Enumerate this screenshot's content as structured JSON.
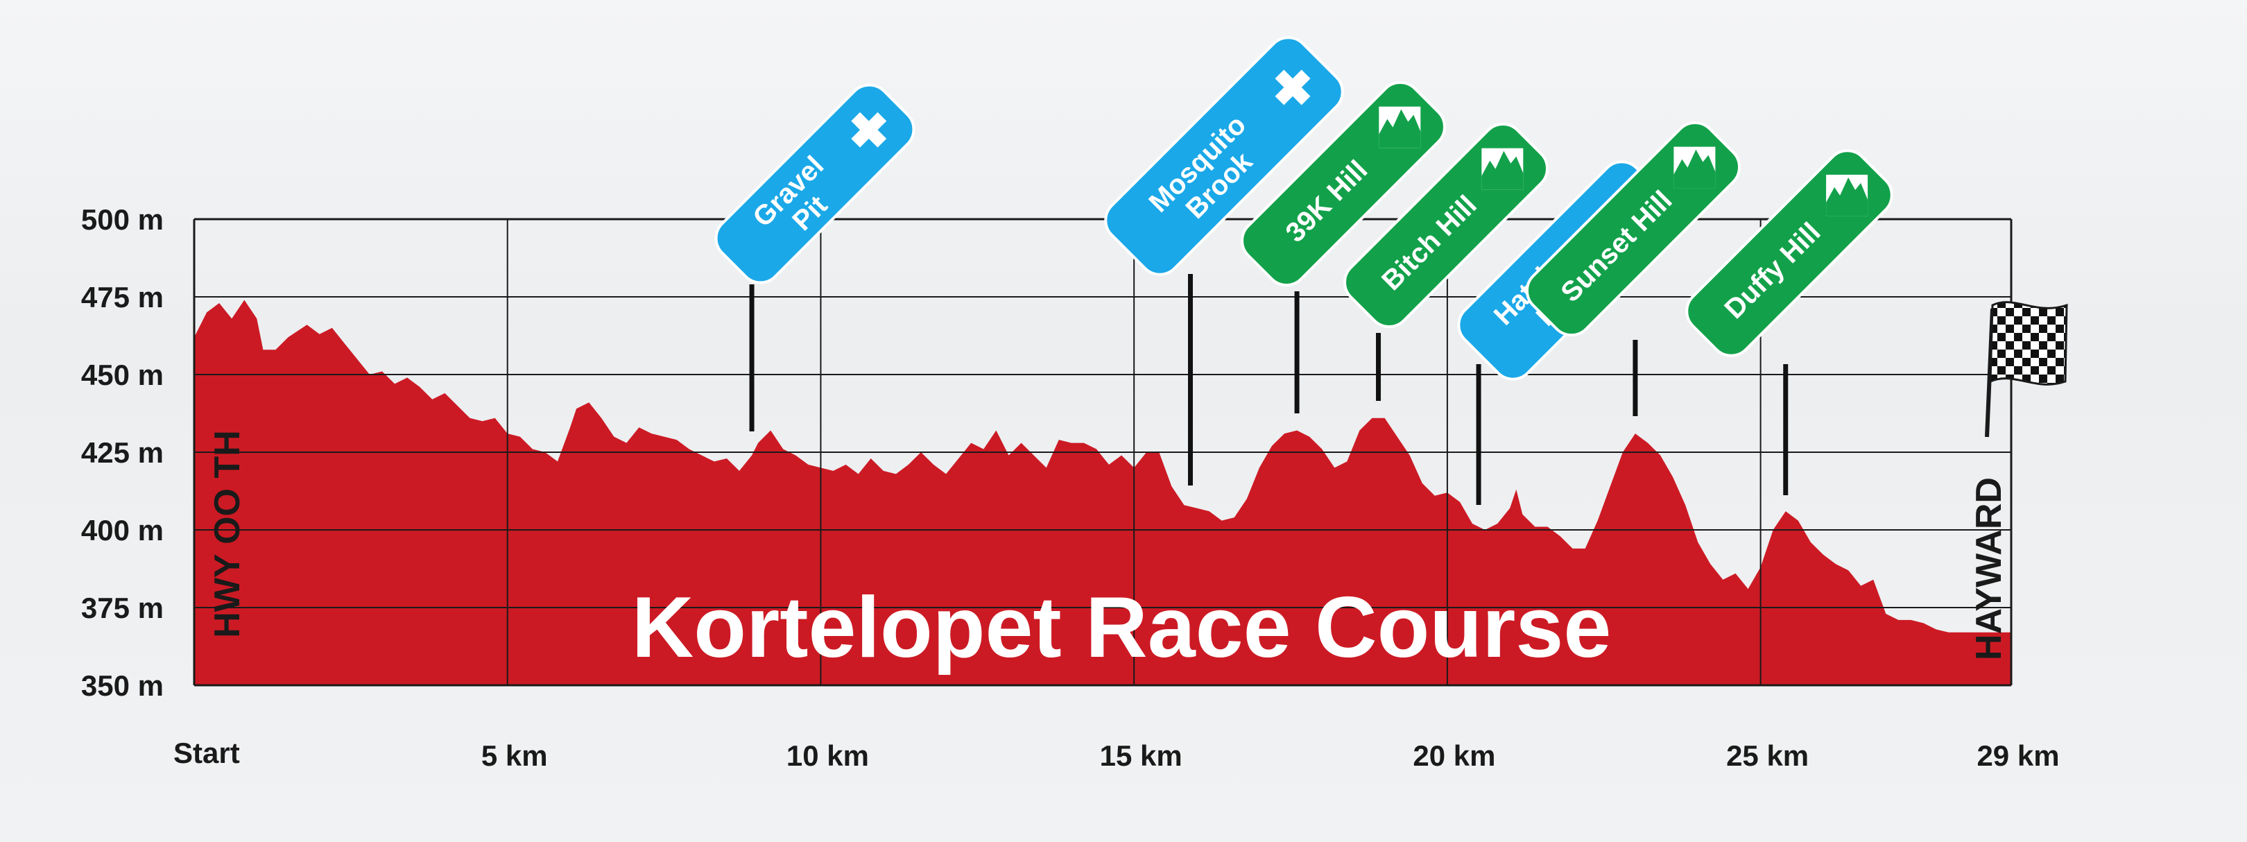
{
  "chart_data": {
    "type": "area",
    "title": "Kortelopet Race Course",
    "x_ticks": [
      {
        "km": 0,
        "label": "Start"
      },
      {
        "km": 5,
        "label": "5 km"
      },
      {
        "km": 10,
        "label": "10 km"
      },
      {
        "km": 15,
        "label": "15 km"
      },
      {
        "km": 20,
        "label": "20 km"
      },
      {
        "km": 25,
        "label": "25 km"
      },
      {
        "km": 29,
        "label": "29 km"
      }
    ],
    "y_ticks": [
      {
        "m": 350,
        "label": "350 m"
      },
      {
        "m": 375,
        "label": "375 m"
      },
      {
        "m": 400,
        "label": "400 m"
      },
      {
        "m": 425,
        "label": "425 m"
      },
      {
        "m": 450,
        "label": "450 m"
      },
      {
        "m": 475,
        "label": "475 m"
      },
      {
        "m": 500,
        "label": "500 m"
      }
    ],
    "xlim": [
      0,
      29
    ],
    "ylim": [
      350,
      500
    ],
    "grid": true,
    "start_label": "HWY OO TH",
    "finish_label": "HAYWARD",
    "fill_color": "#cc1a24",
    "elevation": [
      [
        0.0,
        462
      ],
      [
        0.2,
        470
      ],
      [
        0.4,
        473
      ],
      [
        0.6,
        468
      ],
      [
        0.8,
        474
      ],
      [
        1.0,
        468
      ],
      [
        1.1,
        458
      ],
      [
        1.3,
        458
      ],
      [
        1.5,
        462
      ],
      [
        1.8,
        466
      ],
      [
        2.0,
        463
      ],
      [
        2.2,
        465
      ],
      [
        2.4,
        460
      ],
      [
        2.6,
        455
      ],
      [
        2.8,
        450
      ],
      [
        3.0,
        451
      ],
      [
        3.2,
        447
      ],
      [
        3.4,
        449
      ],
      [
        3.6,
        446
      ],
      [
        3.8,
        442
      ],
      [
        4.0,
        444
      ],
      [
        4.2,
        440
      ],
      [
        4.4,
        436
      ],
      [
        4.6,
        435
      ],
      [
        4.8,
        436
      ],
      [
        5.0,
        431
      ],
      [
        5.2,
        430
      ],
      [
        5.4,
        426
      ],
      [
        5.6,
        425
      ],
      [
        5.8,
        422
      ],
      [
        6.0,
        433
      ],
      [
        6.1,
        439
      ],
      [
        6.3,
        441
      ],
      [
        6.5,
        436
      ],
      [
        6.7,
        430
      ],
      [
        6.9,
        428
      ],
      [
        7.1,
        433
      ],
      [
        7.3,
        431
      ],
      [
        7.5,
        430
      ],
      [
        7.7,
        429
      ],
      [
        7.9,
        426
      ],
      [
        8.1,
        424
      ],
      [
        8.3,
        422
      ],
      [
        8.5,
        423
      ],
      [
        8.7,
        419
      ],
      [
        8.9,
        424
      ],
      [
        9.0,
        428
      ],
      [
        9.2,
        432
      ],
      [
        9.4,
        426
      ],
      [
        9.6,
        424
      ],
      [
        9.8,
        421
      ],
      [
        10.0,
        420
      ],
      [
        10.2,
        419
      ],
      [
        10.4,
        421
      ],
      [
        10.6,
        418
      ],
      [
        10.8,
        423
      ],
      [
        11.0,
        419
      ],
      [
        11.2,
        418
      ],
      [
        11.4,
        421
      ],
      [
        11.6,
        425
      ],
      [
        11.8,
        421
      ],
      [
        12.0,
        418
      ],
      [
        12.2,
        423
      ],
      [
        12.4,
        428
      ],
      [
        12.6,
        426
      ],
      [
        12.8,
        432
      ],
      [
        13.0,
        424
      ],
      [
        13.2,
        428
      ],
      [
        13.4,
        424
      ],
      [
        13.6,
        420
      ],
      [
        13.8,
        429
      ],
      [
        14.0,
        428
      ],
      [
        14.2,
        428
      ],
      [
        14.4,
        426
      ],
      [
        14.6,
        421
      ],
      [
        14.8,
        424
      ],
      [
        15.0,
        420
      ],
      [
        15.2,
        425
      ],
      [
        15.4,
        425
      ],
      [
        15.6,
        414
      ],
      [
        15.8,
        408
      ],
      [
        16.0,
        407
      ],
      [
        16.2,
        406
      ],
      [
        16.4,
        403
      ],
      [
        16.6,
        404
      ],
      [
        16.8,
        410
      ],
      [
        17.0,
        420
      ],
      [
        17.2,
        427
      ],
      [
        17.4,
        431
      ],
      [
        17.6,
        432
      ],
      [
        17.8,
        430
      ],
      [
        18.0,
        426
      ],
      [
        18.2,
        420
      ],
      [
        18.4,
        422
      ],
      [
        18.6,
        432
      ],
      [
        18.8,
        436
      ],
      [
        19.0,
        436
      ],
      [
        19.2,
        430
      ],
      [
        19.4,
        424
      ],
      [
        19.6,
        415
      ],
      [
        19.8,
        411
      ],
      [
        20.0,
        412
      ],
      [
        20.2,
        409
      ],
      [
        20.4,
        402
      ],
      [
        20.6,
        400
      ],
      [
        20.8,
        402
      ],
      [
        21.0,
        407
      ],
      [
        21.1,
        413
      ],
      [
        21.2,
        405
      ],
      [
        21.4,
        401
      ],
      [
        21.6,
        401
      ],
      [
        21.8,
        398
      ],
      [
        22.0,
        394
      ],
      [
        22.2,
        394
      ],
      [
        22.4,
        403
      ],
      [
        22.6,
        414
      ],
      [
        22.8,
        425
      ],
      [
        23.0,
        431
      ],
      [
        23.2,
        428
      ],
      [
        23.4,
        424
      ],
      [
        23.6,
        417
      ],
      [
        23.8,
        408
      ],
      [
        24.0,
        396
      ],
      [
        24.2,
        389
      ],
      [
        24.4,
        384
      ],
      [
        24.6,
        386
      ],
      [
        24.8,
        381
      ],
      [
        25.0,
        388
      ],
      [
        25.2,
        400
      ],
      [
        25.4,
        406
      ],
      [
        25.6,
        403
      ],
      [
        25.8,
        396
      ],
      [
        26.0,
        392
      ],
      [
        26.2,
        389
      ],
      [
        26.4,
        387
      ],
      [
        26.6,
        382
      ],
      [
        26.8,
        384
      ],
      [
        27.0,
        373
      ],
      [
        27.2,
        371
      ],
      [
        27.4,
        371
      ],
      [
        27.6,
        370
      ],
      [
        27.8,
        368
      ],
      [
        28.0,
        367
      ],
      [
        28.2,
        367
      ],
      [
        28.4,
        367
      ],
      [
        28.6,
        367
      ],
      [
        28.8,
        367
      ],
      [
        29.0,
        367
      ]
    ],
    "markers": [
      {
        "label": "Gravel Pit",
        "type": "aid",
        "km": 8.9
      },
      {
        "label": "Mosquito Brook",
        "type": "aid",
        "km": 15.9
      },
      {
        "label": "39K Hill",
        "type": "hill",
        "km": 17.6
      },
      {
        "label": "Bitch Hill",
        "type": "hill",
        "km": 18.9
      },
      {
        "label": "Hatchery Park",
        "type": "aid",
        "km": 20.5
      },
      {
        "label": "Sunset Hill",
        "type": "hill",
        "km": 23.0
      },
      {
        "label": "Duffy Hill",
        "type": "hill",
        "km": 25.4
      }
    ],
    "colors": {
      "aid": "#1aa8e8",
      "hill": "#12a14a",
      "grid": "#1a1a1a"
    }
  }
}
